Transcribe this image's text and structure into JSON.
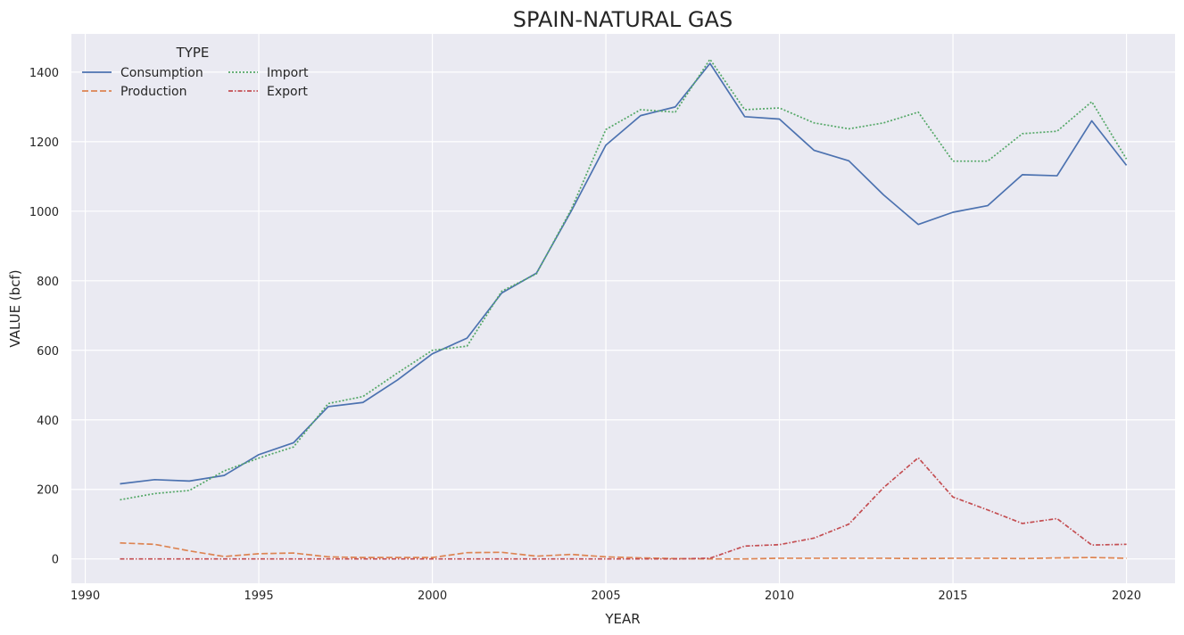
{
  "chart_data": {
    "type": "line",
    "title": "SPAIN-NATURAL GAS",
    "xlabel": "YEAR",
    "ylabel": "VALUE (bcf)",
    "xlim": [
      1989.6,
      2021.4
    ],
    "ylim": [
      -70,
      1510
    ],
    "xticks": [
      1990,
      1995,
      2000,
      2005,
      2010,
      2015,
      2020
    ],
    "yticks": [
      0,
      200,
      400,
      600,
      800,
      1000,
      1200,
      1400
    ],
    "grid": true,
    "background": "#eaeaf2",
    "legend": {
      "title": "TYPE",
      "placement": "top-left",
      "columns": 2
    },
    "x": [
      1991,
      1992,
      1993,
      1994,
      1995,
      1996,
      1997,
      1998,
      1999,
      2000,
      2001,
      2002,
      2003,
      2004,
      2005,
      2006,
      2007,
      2008,
      2009,
      2010,
      2011,
      2012,
      2013,
      2014,
      2015,
      2016,
      2017,
      2018,
      2019,
      2020
    ],
    "series": [
      {
        "name": "Consumption",
        "color": "#4c72b0",
        "dash": "solid",
        "values": [
          216,
          228,
          224,
          240,
          300,
          334,
          438,
          450,
          515,
          590,
          635,
          765,
          822,
          1000,
          1190,
          1275,
          1300,
          1425,
          1272,
          1265,
          1175,
          1145,
          1047,
          962,
          997,
          1016,
          1105,
          1102,
          1260,
          1132
        ]
      },
      {
        "name": "Production",
        "color": "#dd8452",
        "dash": "dashed",
        "values": [
          46,
          42,
          23,
          7,
          15,
          17,
          6,
          4,
          4,
          4,
          18,
          19,
          8,
          13,
          6,
          3,
          1,
          0,
          0,
          2,
          2,
          2,
          2,
          1,
          2,
          2,
          1,
          3,
          4,
          2
        ]
      },
      {
        "name": "Import",
        "color": "#55a868",
        "dash": "dotted",
        "values": [
          170,
          188,
          197,
          253,
          290,
          322,
          447,
          467,
          535,
          600,
          612,
          770,
          820,
          1005,
          1235,
          1292,
          1285,
          1437,
          1292,
          1297,
          1254,
          1237,
          1254,
          1285,
          1144,
          1144,
          1223,
          1230,
          1315,
          1150
        ]
      },
      {
        "name": "Export",
        "color": "#c44e52",
        "dash": "dashdot",
        "values": [
          0,
          0,
          0,
          0,
          0,
          0,
          0,
          0,
          0,
          0,
          0,
          0,
          0,
          0,
          0,
          0,
          0,
          2,
          37,
          41,
          60,
          100,
          205,
          291,
          178,
          141,
          102,
          116,
          40,
          42
        ]
      }
    ]
  }
}
